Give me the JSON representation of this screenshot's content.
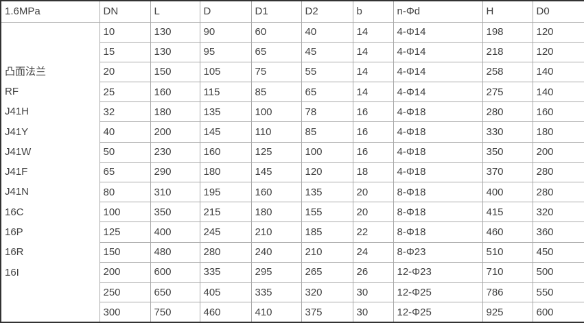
{
  "table": {
    "pressure_label": "1.6MPa",
    "columns": [
      "DN",
      "L",
      "D",
      "D1",
      "D2",
      "b",
      "n-Φd",
      "H",
      "D0"
    ],
    "product_labels": [
      "凸面法兰",
      "RF",
      "J41H",
      "J41Y",
      "J41W",
      "J41F",
      "J41N",
      "16C",
      "16P",
      "16R",
      "16I"
    ],
    "rows": [
      [
        "10",
        "130",
        "90",
        "60",
        "40",
        "14",
        "4-Φ14",
        "198",
        "120"
      ],
      [
        "15",
        "130",
        "95",
        "65",
        "45",
        "14",
        "4-Φ14",
        "218",
        "120"
      ],
      [
        "20",
        "150",
        "105",
        "75",
        "55",
        "14",
        "4-Φ14",
        "258",
        "140"
      ],
      [
        "25",
        "160",
        "115",
        "85",
        "65",
        "14",
        "4-Φ14",
        "275",
        "140"
      ],
      [
        "32",
        "180",
        "135",
        "100",
        "78",
        "16",
        "4-Φ18",
        "280",
        "160"
      ],
      [
        "40",
        "200",
        "145",
        "110",
        "85",
        "16",
        "4-Φ18",
        "330",
        "180"
      ],
      [
        "50",
        "230",
        "160",
        "125",
        "100",
        "16",
        "4-Φ18",
        "350",
        "200"
      ],
      [
        "65",
        "290",
        "180",
        "145",
        "120",
        "18",
        "4-Φ18",
        "370",
        "280"
      ],
      [
        "80",
        "310",
        "195",
        "160",
        "135",
        "20",
        "8-Φ18",
        "400",
        "280"
      ],
      [
        "100",
        "350",
        "215",
        "180",
        "155",
        "20",
        "8-Φ18",
        "415",
        "320"
      ],
      [
        "125",
        "400",
        "245",
        "210",
        "185",
        "22",
        "8-Φ18",
        "460",
        "360"
      ],
      [
        "150",
        "480",
        "280",
        "240",
        "210",
        "24",
        "8-Φ23",
        "510",
        "450"
      ],
      [
        "200",
        "600",
        "335",
        "295",
        "265",
        "26",
        "12-Φ23",
        "710",
        "500"
      ],
      [
        "250",
        "650",
        "405",
        "335",
        "320",
        "30",
        "12-Φ25",
        "786",
        "550"
      ],
      [
        "300",
        "750",
        "460",
        "410",
        "375",
        "30",
        "12-Φ25",
        "925",
        "600"
      ]
    ]
  },
  "colors": {
    "text": "#404040",
    "inner_border": "#a9a9a9",
    "outer_border": "#333333",
    "background": "#ffffff"
  }
}
